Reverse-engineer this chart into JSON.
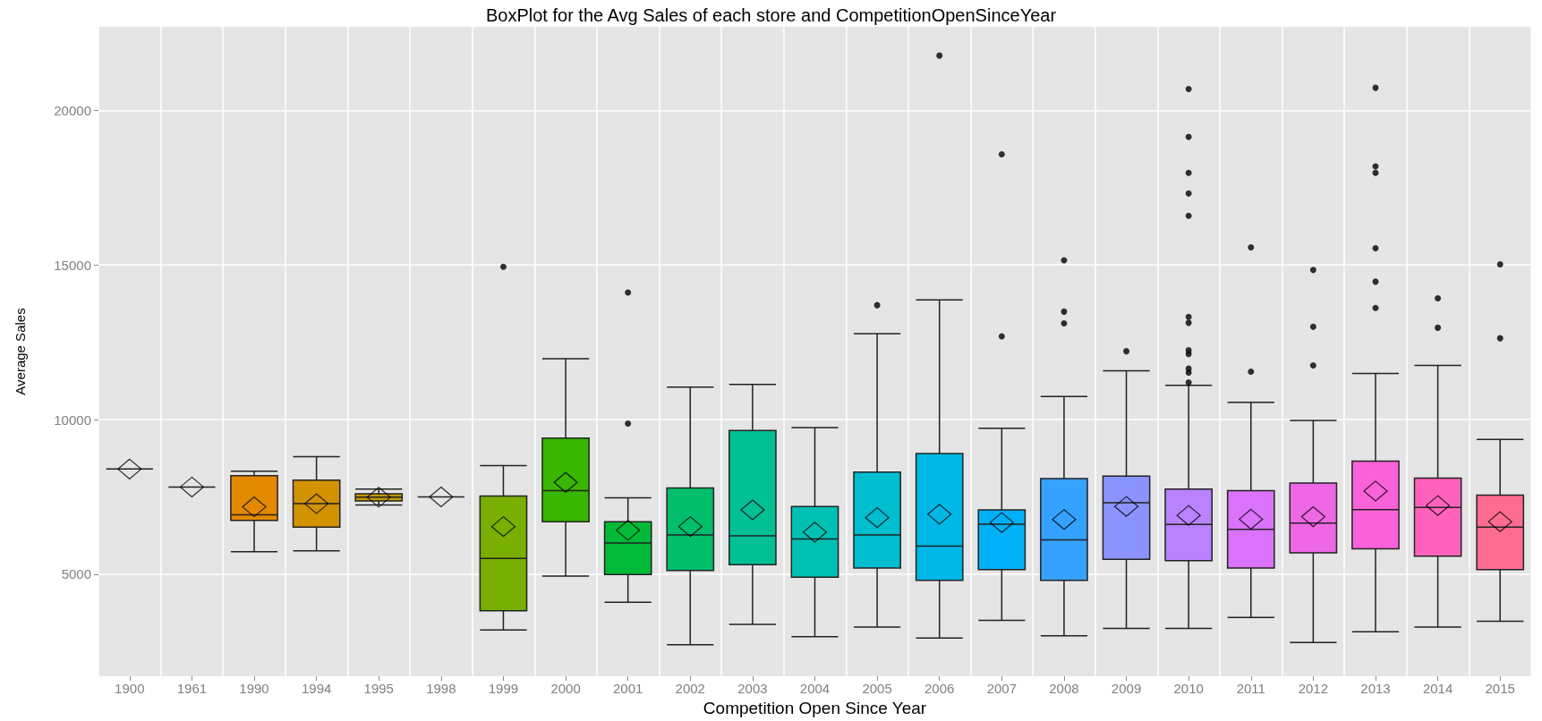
{
  "chart_data": {
    "type": "box",
    "title": "BoxPlot for the Avg Sales of each store and CompetitionOpenSinceYear",
    "xlabel": "Competition Open Since Year",
    "ylabel": "Average Sales",
    "categories": [
      "1900",
      "1961",
      "1990",
      "1994",
      "1995",
      "1998",
      "1999",
      "2000",
      "2001",
      "2002",
      "2003",
      "2004",
      "2005",
      "2006",
      "2007",
      "2008",
      "2009",
      "2010",
      "2011",
      "2012",
      "2013",
      "2014",
      "2015"
    ],
    "colors": [
      null,
      null,
      "#e38900",
      "#d39200",
      "#c49a00",
      null,
      "#78af00",
      "#39b600",
      "#00ba38",
      "#00be6c",
      "#00c094",
      "#00c0b4",
      "#00bdd0",
      "#00b8e7",
      "#00b0f6",
      "#35a2ff",
      "#8b93ff",
      "#b983ff",
      "#da72fb",
      "#ee67e4",
      "#fa62d8",
      "#ff62bc",
      "#ff6c91"
    ],
    "ylim": [
      1700,
      22700
    ],
    "yticks": [
      5000,
      10000,
      15000,
      20000
    ],
    "grid": true,
    "boxes": [
      {
        "low": 8400,
        "q1": 8400,
        "median": 8400,
        "q3": 8400,
        "high": 8400,
        "mean": 8400
      },
      {
        "low": 7820,
        "q1": 7820,
        "median": 7820,
        "q3": 7820,
        "high": 7820,
        "mean": 7820
      },
      {
        "low": 5730,
        "q1": 6740,
        "median": 6920,
        "q3": 8190,
        "high": 8330,
        "mean": 7180
      },
      {
        "low": 5760,
        "q1": 6520,
        "median": 7280,
        "q3": 8040,
        "high": 8800,
        "mean": 7280
      },
      {
        "low": 7240,
        "q1": 7370,
        "median": 7490,
        "q3": 7600,
        "high": 7750,
        "mean": 7490
      },
      {
        "low": 7500,
        "q1": 7500,
        "median": 7500,
        "q3": 7500,
        "high": 7500,
        "mean": 7500
      },
      {
        "low": 3200,
        "q1": 3820,
        "median": 5510,
        "q3": 7530,
        "high": 8510,
        "mean": 6540,
        "outliers": [
          14940
        ]
      },
      {
        "low": 4940,
        "q1": 6700,
        "median": 7700,
        "q3": 9400,
        "high": 11970,
        "mean": 7970
      },
      {
        "low": 4090,
        "q1": 4990,
        "median": 6010,
        "q3": 6700,
        "high": 7470,
        "mean": 6420,
        "outliers": [
          14110,
          9870
        ]
      },
      {
        "low": 2720,
        "q1": 5120,
        "median": 6270,
        "q3": 7790,
        "high": 11050,
        "mean": 6540
      },
      {
        "low": 3380,
        "q1": 5310,
        "median": 6240,
        "q3": 9650,
        "high": 11140,
        "mean": 7080
      },
      {
        "low": 2980,
        "q1": 4900,
        "median": 6140,
        "q3": 7190,
        "high": 9740,
        "mean": 6360
      },
      {
        "low": 3290,
        "q1": 5200,
        "median": 6270,
        "q3": 8300,
        "high": 12780,
        "mean": 6830,
        "outliers": [
          13700
        ]
      },
      {
        "low": 2940,
        "q1": 4800,
        "median": 5910,
        "q3": 8900,
        "high": 13870,
        "mean": 6940,
        "outliers": [
          21770
        ]
      },
      {
        "low": 3510,
        "q1": 5150,
        "median": 6620,
        "q3": 7080,
        "high": 9720,
        "mean": 6670,
        "outliers": [
          18580,
          12690
        ]
      },
      {
        "low": 3010,
        "q1": 4800,
        "median": 6110,
        "q3": 8090,
        "high": 10750,
        "mean": 6770,
        "outliers": [
          15150,
          13490,
          13110
        ]
      },
      {
        "low": 3250,
        "q1": 5480,
        "median": 7310,
        "q3": 8170,
        "high": 11580,
        "mean": 7190,
        "outliers": [
          12210
        ]
      },
      {
        "low": 3250,
        "q1": 5440,
        "median": 6610,
        "q3": 7750,
        "high": 11110,
        "mean": 6900,
        "outliers": [
          20690,
          19140,
          17980,
          17310,
          16590,
          13320,
          13130,
          12240,
          12120,
          11650,
          11520,
          11200
        ]
      },
      {
        "low": 3600,
        "q1": 5200,
        "median": 6450,
        "q3": 7700,
        "high": 10560,
        "mean": 6780,
        "outliers": [
          15570,
          11550
        ]
      },
      {
        "low": 2790,
        "q1": 5690,
        "median": 6650,
        "q3": 7950,
        "high": 9970,
        "mean": 6860,
        "outliers": [
          14840,
          13000,
          11750
        ]
      },
      {
        "low": 3140,
        "q1": 5820,
        "median": 7090,
        "q3": 8660,
        "high": 11490,
        "mean": 7690,
        "outliers": [
          20730,
          18190,
          17980,
          15540,
          14460,
          13610
        ]
      },
      {
        "low": 3290,
        "q1": 5580,
        "median": 7160,
        "q3": 8110,
        "high": 11750,
        "mean": 7220,
        "outliers": [
          13920,
          12970
        ]
      },
      {
        "low": 3480,
        "q1": 5150,
        "median": 6520,
        "q3": 7560,
        "high": 9360,
        "mean": 6700,
        "outliers": [
          15020,
          12630
        ]
      }
    ]
  }
}
